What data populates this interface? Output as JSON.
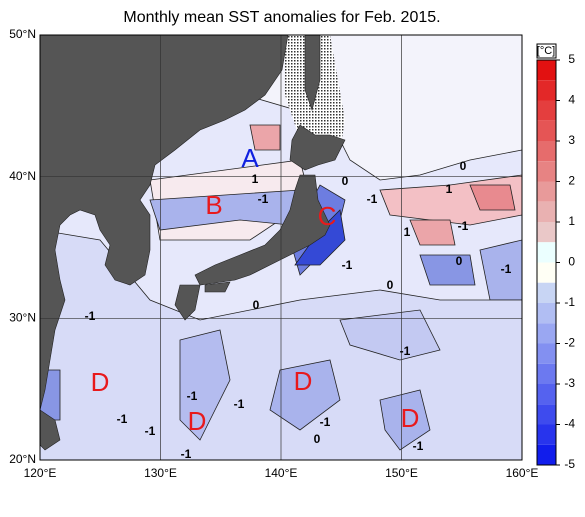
{
  "title": "Monthly mean SST anomalies for Feb. 2015.",
  "map": {
    "xticks": [
      {
        "value": 120,
        "label": "120°E"
      },
      {
        "value": 130,
        "label": "130°E"
      },
      {
        "value": 140,
        "label": "140°E"
      },
      {
        "value": 150,
        "label": "150°E"
      },
      {
        "value": 160,
        "label": "160°E"
      }
    ],
    "yticks": [
      {
        "value": 20,
        "label": "20°N"
      },
      {
        "value": 30,
        "label": "30°N"
      },
      {
        "value": 40,
        "label": "40°N"
      },
      {
        "value": 50,
        "label": "50°N"
      }
    ],
    "xlim": [
      120,
      160
    ],
    "ylim": [
      20,
      50
    ]
  },
  "colorbar": {
    "label": "[°C]",
    "range": [
      -5,
      5
    ],
    "ticks": [
      5,
      4,
      3,
      2,
      1,
      0,
      -1,
      -2,
      -3,
      -4,
      -5
    ]
  },
  "regions": [
    "A",
    "B",
    "C",
    "D",
    "D",
    "D",
    "D"
  ],
  "contour_labels": [
    1,
    -1,
    0,
    -1,
    0,
    1,
    -1,
    1,
    0,
    -1,
    -1,
    -1,
    0,
    -1,
    0,
    -1,
    -1,
    -1,
    -1,
    -1,
    0,
    -1,
    -1
  ]
}
